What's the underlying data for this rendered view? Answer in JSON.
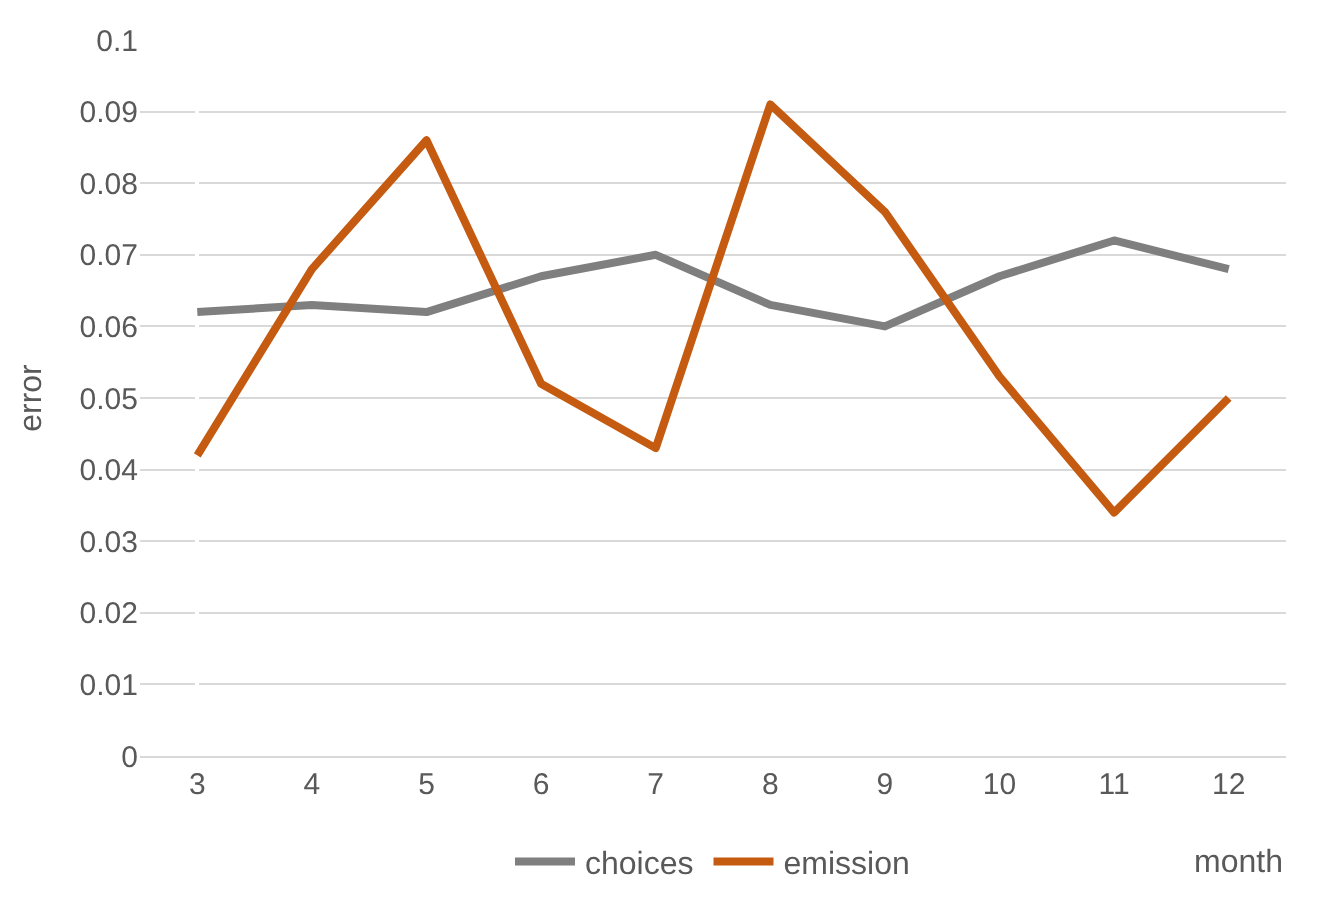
{
  "chart_data": {
    "type": "line",
    "xlabel": "month",
    "ylabel": "error",
    "categories": [
      "3",
      "4",
      "5",
      "6",
      "7",
      "8",
      "9",
      "10",
      "11",
      "12"
    ],
    "series": [
      {
        "name": "choices",
        "color": "#7f7f7f",
        "values": [
          0.062,
          0.063,
          0.062,
          0.067,
          0.07,
          0.063,
          0.06,
          0.067,
          0.072,
          0.068
        ]
      },
      {
        "name": "emission",
        "color": "#c55a11",
        "values": [
          0.042,
          0.068,
          0.086,
          0.052,
          0.043,
          0.091,
          0.076,
          0.053,
          0.034,
          0.05
        ]
      }
    ],
    "ylim": [
      0,
      0.1
    ],
    "yticks": [
      0,
      0.01,
      0.02,
      0.03,
      0.04,
      0.05,
      0.06,
      0.07,
      0.08,
      0.09,
      0.1
    ],
    "grid": "y",
    "legend": "bottom",
    "marker": "none",
    "line_style": "solid"
  }
}
